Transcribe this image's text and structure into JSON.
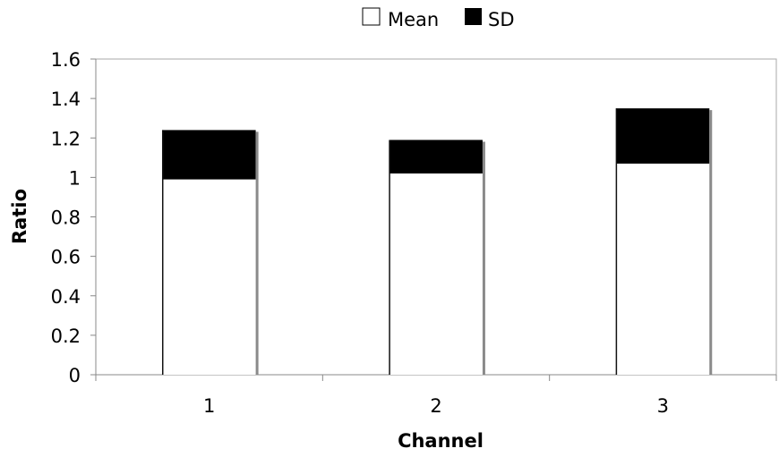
{
  "chart_data": {
    "type": "bar",
    "stacked": true,
    "categories": [
      "1",
      "2",
      "3"
    ],
    "series": [
      {
        "name": "Mean",
        "values": [
          0.99,
          1.02,
          1.07
        ],
        "color": "#ffffff"
      },
      {
        "name": "SD",
        "values": [
          0.25,
          0.17,
          0.28
        ],
        "color": "#000000"
      }
    ],
    "xlabel": "Channel",
    "ylabel": "Ratio",
    "ylim": [
      0,
      1.6
    ],
    "yticks": [
      "0",
      "0.2",
      "0.4",
      "0.6",
      "0.8",
      "1",
      "1.2",
      "1.4",
      "1.6"
    ],
    "legend": {
      "position": "top",
      "entries": [
        "Mean",
        "SD"
      ]
    },
    "grid": false
  }
}
